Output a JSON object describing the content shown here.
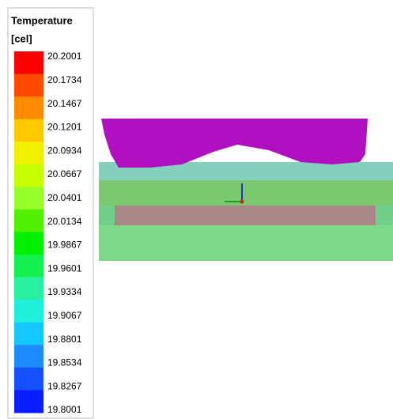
{
  "legend": {
    "title": "Temperature",
    "unit": "[cel]",
    "labels": [
      "20.2001",
      "20.1734",
      "20.1467",
      "20.1201",
      "20.0934",
      "20.0667",
      "20.0401",
      "20.0134",
      "19.9867",
      "19.9601",
      "19.9334",
      "19.9067",
      "19.8801",
      "19.8534",
      "19.8267",
      "19.8001"
    ],
    "colors": [
      "#ff0000",
      "#ff4a00",
      "#ff8c00",
      "#ffc800",
      "#f0f000",
      "#c8ff00",
      "#96ff28",
      "#50f000",
      "#00f000",
      "#14f050",
      "#28f0a0",
      "#1ef0dc",
      "#14c8ff",
      "#1e8cff",
      "#1450ff",
      "#0a1eff"
    ]
  }
}
